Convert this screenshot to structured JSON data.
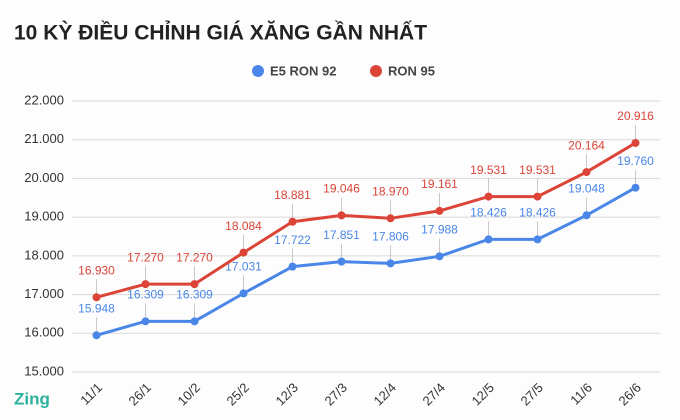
{
  "chart_data": {
    "type": "line",
    "title": "10 KỲ ĐIỀU CHỈNH GIÁ XĂNG GẦN NHẤT",
    "brand": "Zing",
    "categories": [
      "11/1",
      "26/1",
      "10/2",
      "25/2",
      "12/3",
      "27/3",
      "12/4",
      "27/4",
      "12/5",
      "27/5",
      "11/6",
      "26/6"
    ],
    "series": [
      {
        "name": "E5 RON 92",
        "color": "#4a86e8",
        "values": [
          15948,
          16309,
          16309,
          17031,
          17722,
          17851,
          17806,
          17988,
          18426,
          18426,
          19048,
          19760
        ],
        "value_labels": [
          "15.948",
          "16.309",
          "16.309",
          "17.031",
          "17.722",
          "17.851",
          "17.806",
          "17.988",
          "18.426",
          "18.426",
          "19.048",
          "19.760"
        ]
      },
      {
        "name": "RON 95",
        "color": "#db4437",
        "values": [
          16930,
          17270,
          17270,
          18084,
          18881,
          19046,
          18970,
          19161,
          19531,
          19531,
          20164,
          20916
        ],
        "value_labels": [
          "16.930",
          "17.270",
          "17.270",
          "18.084",
          "18.881",
          "19.046",
          "18.970",
          "19.161",
          "19.531",
          "19.531",
          "20.164",
          "20.916"
        ]
      }
    ],
    "ylim": [
      15000,
      22000
    ],
    "yticks": [
      {
        "value": 15000,
        "label": "15.000"
      },
      {
        "value": 16000,
        "label": "16.000"
      },
      {
        "value": 17000,
        "label": "17.000"
      },
      {
        "value": 18000,
        "label": "18.000"
      },
      {
        "value": 19000,
        "label": "19.000"
      },
      {
        "value": 20000,
        "label": "20.000"
      },
      {
        "value": 21000,
        "label": "21.000"
      },
      {
        "value": 22000,
        "label": "22.000"
      }
    ],
    "grid": true,
    "legend": "top"
  }
}
